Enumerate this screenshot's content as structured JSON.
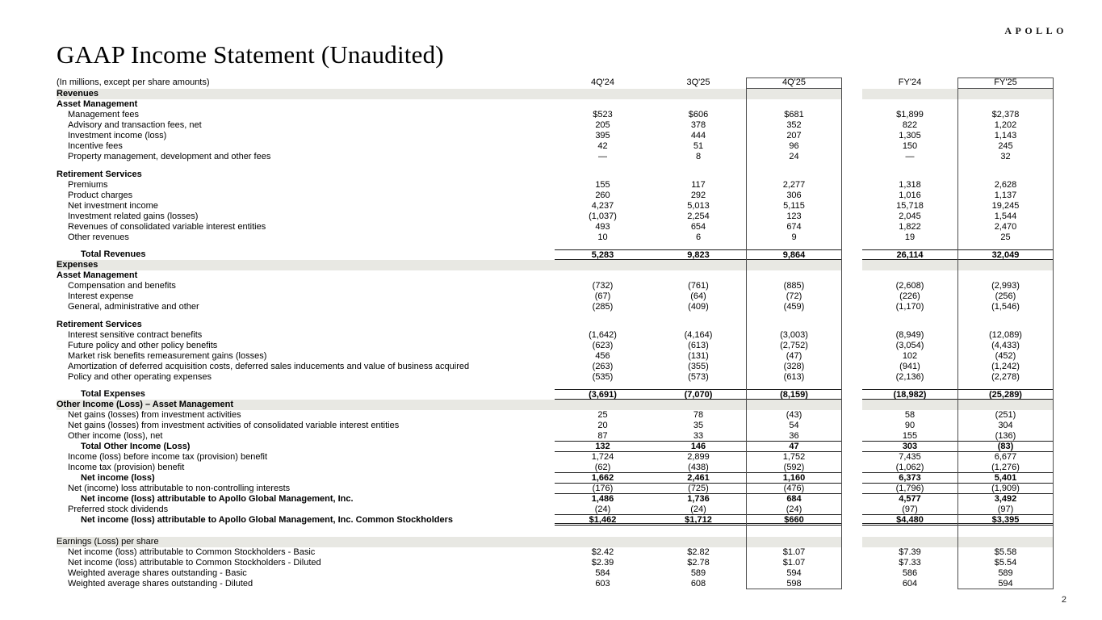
{
  "page": {
    "logo": "APOLLO",
    "title": "GAAP Income Statement (Unaudited)",
    "subtitle": "(In millions, except per share amounts)",
    "page_number": "2"
  },
  "colors": {
    "band": "#e8e8e3",
    "rule": "#1a1a1a",
    "box_border": "#4d4d4d"
  },
  "table": {
    "columns": [
      "4Q'24",
      "3Q'25",
      "4Q'25",
      "FY'24",
      "FY'25"
    ],
    "highlighted_columns": [
      "4Q'25",
      "FY'25"
    ],
    "rows": [
      {
        "type": "band",
        "label": "Revenues",
        "bold": true
      },
      {
        "type": "item",
        "label": "Asset Management",
        "indent": 0,
        "bold": true
      },
      {
        "type": "item",
        "label": "Management fees",
        "indent": 1,
        "values": [
          "$523",
          "$606",
          "$681",
          "$1,899",
          "$2,378"
        ]
      },
      {
        "type": "item",
        "label": "Advisory and transaction fees, net",
        "indent": 1,
        "values": [
          "205",
          "378",
          "352",
          "822",
          "1,202"
        ]
      },
      {
        "type": "item",
        "label": "Investment income (loss)",
        "indent": 1,
        "values": [
          "395",
          "444",
          "207",
          "1,305",
          "1,143"
        ]
      },
      {
        "type": "item",
        "label": "Incentive fees",
        "indent": 1,
        "values": [
          "42",
          "51",
          "96",
          "150",
          "245"
        ]
      },
      {
        "type": "item",
        "label": "Property management, development and other fees",
        "indent": 1,
        "values": [
          "—",
          "8",
          "24",
          "—",
          "32"
        ]
      },
      {
        "type": "spacer",
        "h": 9
      },
      {
        "type": "item",
        "label": "Retirement Services",
        "indent": 0,
        "bold": true
      },
      {
        "type": "item",
        "label": "Premiums",
        "indent": 1,
        "values": [
          "155",
          "117",
          "2,277",
          "1,318",
          "2,628"
        ]
      },
      {
        "type": "item",
        "label": "Product charges",
        "indent": 1,
        "values": [
          "260",
          "292",
          "306",
          "1,016",
          "1,137"
        ]
      },
      {
        "type": "item",
        "label": "Net investment income",
        "indent": 1,
        "values": [
          "4,237",
          "5,013",
          "5,115",
          "15,718",
          "19,245"
        ]
      },
      {
        "type": "item",
        "label": "Investment related gains (losses)",
        "indent": 1,
        "values": [
          "(1,037)",
          "2,254",
          "123",
          "2,045",
          "1,544"
        ]
      },
      {
        "type": "item",
        "label": "Revenues of consolidated variable interest entities",
        "indent": 1,
        "values": [
          "493",
          "654",
          "674",
          "1,822",
          "2,470"
        ]
      },
      {
        "type": "item",
        "label": "Other revenues",
        "indent": 1,
        "values": [
          "10",
          "6",
          "9",
          "19",
          "25"
        ]
      },
      {
        "type": "spacer",
        "h": 8
      },
      {
        "type": "item",
        "label": "Total Revenues",
        "indent": 2,
        "bold": true,
        "rule_top": true,
        "rule_bottom": true,
        "values": [
          "5,283",
          "9,823",
          "9,864",
          "26,114",
          "32,049"
        ]
      },
      {
        "type": "band",
        "label": "Expenses",
        "bold": true
      },
      {
        "type": "item",
        "label": "Asset Management",
        "indent": 0,
        "bold": true
      },
      {
        "type": "item",
        "label": "Compensation and benefits",
        "indent": 1,
        "values": [
          "(732)",
          "(761)",
          "(885)",
          "(2,608)",
          "(2,993)"
        ]
      },
      {
        "type": "item",
        "label": "Interest expense",
        "indent": 1,
        "values": [
          "(67)",
          "(64)",
          "(72)",
          "(226)",
          "(256)"
        ]
      },
      {
        "type": "item",
        "label": "General, administrative and other",
        "indent": 1,
        "values": [
          "(285)",
          "(409)",
          "(459)",
          "(1,170)",
          "(1,546)"
        ]
      },
      {
        "type": "spacer",
        "h": 9
      },
      {
        "type": "item",
        "label": "Retirement Services",
        "indent": 0,
        "bold": true
      },
      {
        "type": "item",
        "label": "Interest sensitive contract benefits",
        "indent": 1,
        "values": [
          "(1,642)",
          "(4,164)",
          "(3,003)",
          "(8,949)",
          "(12,089)"
        ]
      },
      {
        "type": "item",
        "label": "Future policy and other policy benefits",
        "indent": 1,
        "values": [
          "(623)",
          "(613)",
          "(2,752)",
          "(3,054)",
          "(4,433)"
        ]
      },
      {
        "type": "item",
        "label": "Market risk benefits remeasurement gains (losses)",
        "indent": 1,
        "values": [
          "456",
          "(131)",
          "(47)",
          "102",
          "(452)"
        ]
      },
      {
        "type": "item",
        "label": "Amortization of deferred acquisition costs, deferred sales inducements and value of business acquired",
        "indent": 1,
        "values": [
          "(263)",
          "(355)",
          "(328)",
          "(941)",
          "(1,242)"
        ]
      },
      {
        "type": "item",
        "label": "Policy and other operating expenses",
        "indent": 1,
        "values": [
          "(535)",
          "(573)",
          "(613)",
          "(2,136)",
          "(2,278)"
        ]
      },
      {
        "type": "spacer",
        "h": 8
      },
      {
        "type": "item",
        "label": "Total Expenses",
        "indent": 2,
        "bold": true,
        "rule_top": true,
        "rule_bottom": true,
        "values": [
          "(3,691)",
          "(7,070)",
          "(8,159)",
          "(18,982)",
          "(25,289)"
        ]
      },
      {
        "type": "band",
        "label": "Other Income (Loss) – Asset Management",
        "bold": true
      },
      {
        "type": "item",
        "label": "Net gains (losses) from investment activities",
        "indent": 1,
        "values": [
          "25",
          "78",
          "(43)",
          "58",
          "(251)"
        ]
      },
      {
        "type": "item",
        "label": "Net gains (losses) from investment activities of consolidated variable interest entities",
        "indent": 1,
        "values": [
          "20",
          "35",
          "54",
          "90",
          "304"
        ]
      },
      {
        "type": "item",
        "label": "Other income (loss), net",
        "indent": 1,
        "rule_bottom": true,
        "values": [
          "87",
          "33",
          "36",
          "155",
          "(136)"
        ]
      },
      {
        "type": "item",
        "label": "Total Other Income (Loss)",
        "indent": 2,
        "bold": true,
        "rule_bottom": true,
        "values": [
          "132",
          "146",
          "47",
          "303",
          "(83)"
        ]
      },
      {
        "type": "item",
        "label": "Income (loss) before income tax (provision) benefit",
        "indent": 1,
        "values": [
          "1,724",
          "2,899",
          "1,752",
          "7,435",
          "6,677"
        ]
      },
      {
        "type": "item",
        "label": "Income tax (provision) benefit",
        "indent": 1,
        "rule_bottom": true,
        "values": [
          "(62)",
          "(438)",
          "(592)",
          "(1,062)",
          "(1,276)"
        ]
      },
      {
        "type": "item",
        "label": "Net income (loss)",
        "indent": 2,
        "bold": true,
        "rule_bottom": true,
        "values": [
          "1,662",
          "2,461",
          "1,160",
          "6,373",
          "5,401"
        ]
      },
      {
        "type": "item",
        "label": "Net (income) loss attributable to non-controlling interests",
        "indent": 1,
        "rule_bottom": true,
        "values": [
          "(176)",
          "(725)",
          "(476)",
          "(1,796)",
          "(1,909)"
        ]
      },
      {
        "type": "item",
        "label": "Net income (loss) attributable to Apollo Global Management, Inc.",
        "indent": 2,
        "bold": true,
        "values": [
          "1,486",
          "1,736",
          "684",
          "4,577",
          "3,492"
        ]
      },
      {
        "type": "item",
        "label": "Preferred stock dividends",
        "indent": 1,
        "rule_bottom": true,
        "values": [
          "(24)",
          "(24)",
          "(24)",
          "(97)",
          "(97)"
        ]
      },
      {
        "type": "item",
        "label": "Net income (loss) attributable to Apollo Global Management, Inc. Common Stockholders",
        "indent": 2,
        "bold": true,
        "double_bottom": true,
        "values": [
          "$1,462",
          "$1,712",
          "$660",
          "$4,480",
          "$3,395"
        ]
      },
      {
        "type": "spacer",
        "h": 14
      },
      {
        "type": "band",
        "label": "Earnings (Loss) per share",
        "bold": false
      },
      {
        "type": "item",
        "label": "Net income (loss) attributable to Common Stockholders - Basic",
        "indent": 1,
        "values": [
          "$2.42",
          "$2.82",
          "$1.07",
          "$7.39",
          "$5.58"
        ]
      },
      {
        "type": "item",
        "label": "Net income (loss) attributable to Common Stockholders - Diluted",
        "indent": 1,
        "values": [
          "$2.39",
          "$2.78",
          "$1.07",
          "$7.33",
          "$5.54"
        ]
      },
      {
        "type": "item",
        "label": "Weighted average shares outstanding - Basic",
        "indent": 1,
        "values": [
          "584",
          "589",
          "594",
          "586",
          "589"
        ]
      },
      {
        "type": "item",
        "label": "Weighted average shares outstanding - Diluted",
        "indent": 1,
        "values": [
          "603",
          "608",
          "598",
          "604",
          "594"
        ]
      }
    ]
  }
}
